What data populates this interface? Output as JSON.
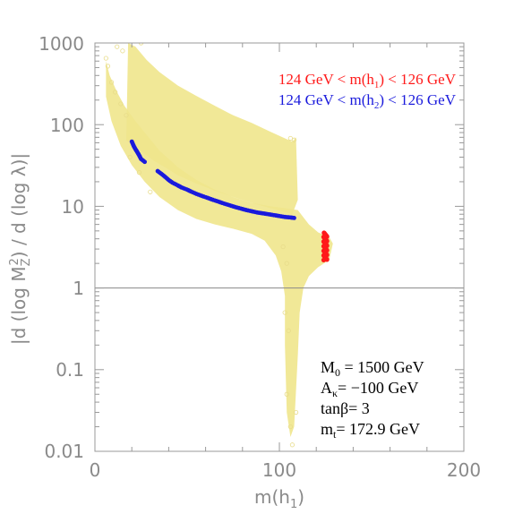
{
  "chart_data": {
    "type": "scatter",
    "title": "",
    "xlabel": "m(h",
    "xlabel_sub": "1",
    "xlabel_tail": ")",
    "ylabel_parts": [
      "|d (log M",
      "Z",
      "2",
      ") / d (log λ)|"
    ],
    "xlim": [
      0,
      200
    ],
    "ylim": [
      0.01,
      1000
    ],
    "yscale": "log",
    "x_ticks": [
      0,
      100,
      200
    ],
    "x_tick_labels": [
      "0",
      "100",
      "200"
    ],
    "y_ticks": [
      0.01,
      0.1,
      1,
      10,
      100,
      1000
    ],
    "y_tick_labels": [
      "0.01",
      "0.1",
      "1",
      "10",
      "100",
      "1000"
    ],
    "reference_line": 1,
    "legend": [
      {
        "prefix": "124 GeV < m(h",
        "sub": "1",
        "suffix": ") < 126 GeV",
        "color": "#ff1a1a"
      },
      {
        "prefix": "124 GeV < m(h",
        "sub": "2",
        "suffix": ") < 126 GeV",
        "color": "#1a1adc"
      }
    ],
    "parameters": [
      {
        "main": "M",
        "sub": "0",
        "rest": " = 1500 GeV"
      },
      {
        "main": "A",
        "sub": "κ",
        "rest": "= −100 GeV"
      },
      {
        "main": "tanβ= 3",
        "sub": "",
        "rest": ""
      },
      {
        "main": "m",
        "sub": "t",
        "rest": "= 172.9 GeV"
      }
    ],
    "colors": {
      "background_scan": "#f0e68c",
      "red": "#ff1a1a",
      "blue": "#1a1adc",
      "refline": "#888888"
    },
    "series": [
      {
        "name": "124 GeV < m(h2) < 126 GeV",
        "points": [
          [
            20,
            62
          ],
          [
            21,
            55
          ],
          [
            22,
            50
          ],
          [
            23,
            46
          ],
          [
            24,
            42
          ],
          [
            25,
            38
          ],
          [
            27,
            35
          ],
          [
            34,
            27
          ],
          [
            36,
            25
          ],
          [
            38,
            23
          ],
          [
            40,
            21
          ],
          [
            42,
            19.5
          ],
          [
            45,
            18
          ],
          [
            47,
            17
          ],
          [
            50,
            16
          ],
          [
            52,
            15.2
          ],
          [
            55,
            14.2
          ],
          [
            58,
            13.4
          ],
          [
            61,
            12.7
          ],
          [
            64,
            12
          ],
          [
            67,
            11.4
          ],
          [
            70,
            10.8
          ],
          [
            73,
            10.3
          ],
          [
            76,
            9.8
          ],
          [
            79,
            9.4
          ],
          [
            82,
            9
          ],
          [
            85,
            8.7
          ],
          [
            88,
            8.4
          ],
          [
            91,
            8.2
          ],
          [
            94,
            8
          ],
          [
            97,
            7.8
          ],
          [
            100,
            7.6
          ],
          [
            103,
            7.4
          ],
          [
            106,
            7.3
          ],
          [
            108,
            7.2
          ]
        ]
      },
      {
        "name": "124 GeV < m(h1) < 126 GeV",
        "x_range": [
          124,
          126
        ],
        "y_range": [
          2.2,
          4.8
        ]
      }
    ]
  }
}
